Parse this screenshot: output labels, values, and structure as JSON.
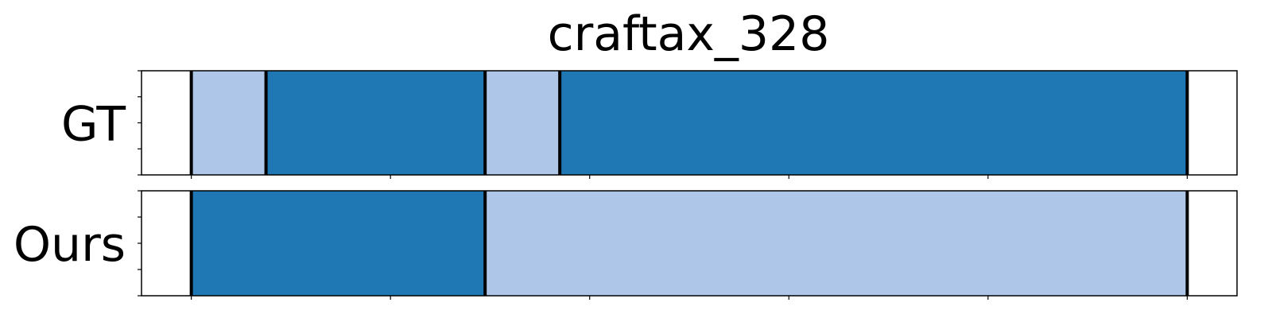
{
  "chart_data": {
    "type": "segmentation-timeline",
    "title": "craftax_328",
    "x_range": [
      0,
      22
    ],
    "xlim": [
      -1,
      21
    ],
    "colors": {
      "dark": "#1f77b4",
      "light": "#aec7e8",
      "boundary": "#000000",
      "frame": "#000000"
    },
    "rows": [
      {
        "label": "GT",
        "segments": [
          {
            "start": 0.0,
            "end": 1.5,
            "class": "light"
          },
          {
            "start": 1.5,
            "end": 5.9,
            "class": "dark"
          },
          {
            "start": 5.9,
            "end": 7.4,
            "class": "light"
          },
          {
            "start": 7.4,
            "end": 20.0,
            "class": "dark"
          }
        ],
        "boundaries": [
          0.0,
          1.5,
          5.9,
          7.4,
          20.0
        ]
      },
      {
        "label": "Ours",
        "segments": [
          {
            "start": 0.0,
            "end": 5.9,
            "class": "dark"
          },
          {
            "start": 5.9,
            "end": 20.0,
            "class": "light"
          }
        ],
        "boundaries": [
          0.0,
          5.9,
          20.0
        ]
      }
    ],
    "x_ticks": [
      0,
      4,
      8,
      12,
      16,
      20
    ],
    "y_ticks_count": 5,
    "grid": false,
    "legend": "none"
  }
}
